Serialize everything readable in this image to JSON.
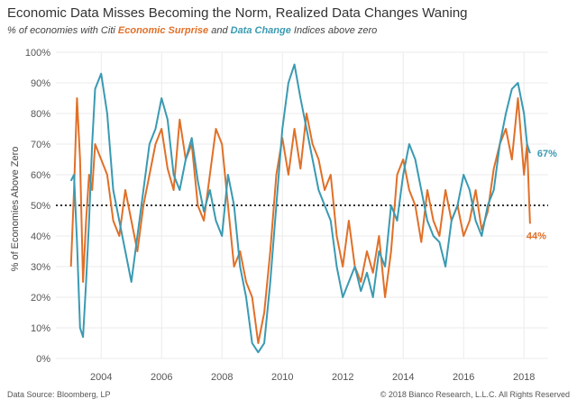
{
  "title": "Economic Data Misses Becoming the Norm, Realized Data Changes Waning",
  "subtitle": {
    "prefix": "% of economies with Citi ",
    "series1": "Economic Surprise",
    "middle": " and ",
    "series2": "Data Change",
    "suffix": " Indices above zero"
  },
  "footer": {
    "source": "Data Source: Bloomberg, LP",
    "copyright": "© 2018 Bianco Research, L.L.C. All Rights Reserved"
  },
  "colors": {
    "surprise": "#E07028",
    "change": "#3A9AB2",
    "reference": "#333333",
    "grid": "#EBEBEB"
  },
  "chart_data": {
    "type": "line",
    "ylabel": "% of Economies Above Zero",
    "ylim": [
      0,
      100
    ],
    "yticks": [
      "0%",
      "10%",
      "20%",
      "30%",
      "40%",
      "50%",
      "60%",
      "70%",
      "80%",
      "90%",
      "100%"
    ],
    "xlim": [
      2002.5,
      2018.8
    ],
    "xticks": [
      "2004",
      "2006",
      "2008",
      "2010",
      "2012",
      "2014",
      "2016",
      "2018"
    ],
    "grid": true,
    "reference_line": 50,
    "end_labels": {
      "change": "67%",
      "surprise": "44%"
    },
    "series": [
      {
        "key": "surprise",
        "x": [
          2003.0,
          2003.1,
          2003.2,
          2003.3,
          2003.4,
          2003.5,
          2003.6,
          2003.7,
          2003.8,
          2004.0,
          2004.2,
          2004.4,
          2004.6,
          2004.8,
          2005.0,
          2005.2,
          2005.4,
          2005.6,
          2005.8,
          2006.0,
          2006.2,
          2006.4,
          2006.6,
          2006.8,
          2007.0,
          2007.2,
          2007.4,
          2007.6,
          2007.8,
          2008.0,
          2008.2,
          2008.4,
          2008.6,
          2008.8,
          2009.0,
          2009.2,
          2009.4,
          2009.6,
          2009.8,
          2010.0,
          2010.2,
          2010.4,
          2010.6,
          2010.8,
          2011.0,
          2011.2,
          2011.4,
          2011.6,
          2011.8,
          2012.0,
          2012.2,
          2012.4,
          2012.6,
          2012.8,
          2013.0,
          2013.2,
          2013.4,
          2013.6,
          2013.8,
          2014.0,
          2014.2,
          2014.4,
          2014.6,
          2014.8,
          2015.0,
          2015.2,
          2015.4,
          2015.6,
          2015.8,
          2016.0,
          2016.2,
          2016.4,
          2016.6,
          2016.8,
          2017.0,
          2017.2,
          2017.4,
          2017.6,
          2017.8,
          2018.0,
          2018.1,
          2018.2
        ],
        "values": [
          30,
          55,
          85,
          65,
          25,
          45,
          60,
          55,
          70,
          65,
          60,
          45,
          40,
          55,
          45,
          35,
          50,
          60,
          70,
          75,
          62,
          55,
          78,
          65,
          70,
          50,
          45,
          60,
          75,
          70,
          50,
          30,
          35,
          25,
          20,
          5,
          15,
          35,
          60,
          72,
          60,
          75,
          62,
          80,
          70,
          65,
          55,
          60,
          40,
          30,
          45,
          30,
          25,
          35,
          28,
          40,
          20,
          35,
          60,
          65,
          55,
          50,
          38,
          55,
          45,
          40,
          55,
          45,
          50,
          40,
          45,
          55,
          42,
          48,
          62,
          70,
          75,
          65,
          85,
          60,
          70,
          44
        ]
      },
      {
        "key": "change",
        "x": [
          2003.0,
          2003.1,
          2003.2,
          2003.3,
          2003.4,
          2003.5,
          2003.6,
          2003.7,
          2003.8,
          2004.0,
          2004.2,
          2004.4,
          2004.6,
          2004.8,
          2005.0,
          2005.2,
          2005.4,
          2005.6,
          2005.8,
          2006.0,
          2006.2,
          2006.4,
          2006.6,
          2006.8,
          2007.0,
          2007.2,
          2007.4,
          2007.6,
          2007.8,
          2008.0,
          2008.2,
          2008.4,
          2008.6,
          2008.8,
          2009.0,
          2009.2,
          2009.4,
          2009.6,
          2009.8,
          2010.0,
          2010.2,
          2010.4,
          2010.6,
          2010.8,
          2011.0,
          2011.2,
          2011.4,
          2011.6,
          2011.8,
          2012.0,
          2012.2,
          2012.4,
          2012.6,
          2012.8,
          2013.0,
          2013.2,
          2013.4,
          2013.6,
          2013.8,
          2014.0,
          2014.2,
          2014.4,
          2014.6,
          2014.8,
          2015.0,
          2015.2,
          2015.4,
          2015.6,
          2015.8,
          2016.0,
          2016.2,
          2016.4,
          2016.6,
          2016.8,
          2017.0,
          2017.2,
          2017.4,
          2017.6,
          2017.8,
          2018.0,
          2018.1,
          2018.2
        ],
        "values": [
          58,
          60,
          38,
          10,
          7,
          25,
          45,
          70,
          88,
          93,
          80,
          55,
          45,
          35,
          25,
          40,
          55,
          70,
          75,
          85,
          78,
          60,
          55,
          65,
          72,
          58,
          48,
          55,
          45,
          40,
          60,
          50,
          30,
          20,
          5,
          2,
          5,
          25,
          50,
          75,
          90,
          96,
          85,
          75,
          65,
          55,
          50,
          45,
          30,
          20,
          25,
          30,
          22,
          28,
          20,
          35,
          30,
          50,
          45,
          60,
          70,
          65,
          55,
          45,
          40,
          38,
          30,
          45,
          50,
          60,
          55,
          45,
          40,
          50,
          55,
          70,
          80,
          88,
          90,
          80,
          70,
          67
        ]
      }
    ]
  }
}
